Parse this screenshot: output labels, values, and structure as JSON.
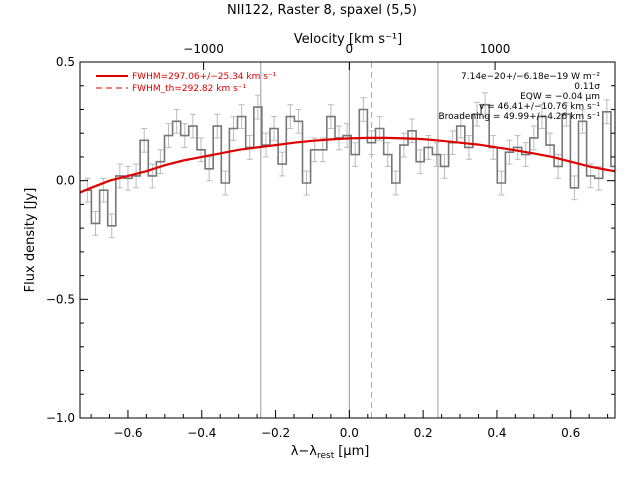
{
  "chart_data": {
    "type": "line",
    "title": "NII122, Raster 8, spaxel (5,5)",
    "xlabel_main": "λ−λ",
    "xlabel_sub": "rest",
    "xlabel_units": "[μm]",
    "ylabel": "Flux density [Jy]",
    "top_axis_label": "Velocity [km s⁻¹]",
    "xlim": [
      -0.73,
      0.72
    ],
    "ylim": [
      -1.0,
      0.5
    ],
    "x_ticks": [
      -0.6,
      -0.4,
      -0.2,
      0.0,
      0.2,
      0.4,
      0.6
    ],
    "x_tick_labels": [
      "−0.6",
      "−0.4",
      "−0.2",
      "0.0",
      "0.2",
      "0.4",
      "0.6"
    ],
    "y_ticks": [
      -1.0,
      -0.5,
      0.0,
      0.5
    ],
    "y_tick_labels": [
      "−1.0",
      "−0.5",
      "0.0",
      "0.5"
    ],
    "top_ticks_pos": [
      -0.395,
      0.0,
      0.395
    ],
    "top_tick_labels": [
      "−1000",
      "0",
      "1000"
    ],
    "vlines_solid": [
      -0.24,
      0.0,
      0.24
    ],
    "vline_dashed": 0.06,
    "legend": [
      {
        "label": "FWHM=297.06+/−25.34 km s⁻¹",
        "color": "#dd0000",
        "style": "solid"
      },
      {
        "label": "FWHM_th=292.82 km s⁻¹",
        "color": "#dd0000",
        "style": "dashed"
      }
    ],
    "annotations": [
      "7.14e−20+/−6.18e−19 W m⁻²",
      "0.11σ",
      "EQW = −0.04 μm",
      "v = 46.41+/−10.76 km s⁻¹",
      "Broadening = 49.99+/−4.26 km s⁻¹"
    ],
    "series": [
      {
        "name": "spectrum",
        "color": "#777777",
        "style": "step",
        "x": [
          -0.71,
          -0.688,
          -0.666,
          -0.644,
          -0.622,
          -0.6,
          -0.578,
          -0.556,
          -0.534,
          -0.512,
          -0.49,
          -0.468,
          -0.446,
          -0.424,
          -0.402,
          -0.38,
          -0.358,
          -0.336,
          -0.314,
          -0.292,
          -0.27,
          -0.248,
          -0.226,
          -0.204,
          -0.182,
          -0.16,
          -0.138,
          -0.116,
          -0.094,
          -0.072,
          -0.05,
          -0.028,
          -0.006,
          0.016,
          0.038,
          0.06,
          0.082,
          0.104,
          0.126,
          0.148,
          0.17,
          0.192,
          0.214,
          0.236,
          0.258,
          0.28,
          0.302,
          0.324,
          0.346,
          0.368,
          0.39,
          0.412,
          0.434,
          0.456,
          0.478,
          0.5,
          0.522,
          0.544,
          0.566,
          0.588,
          0.61,
          0.632,
          0.654,
          0.676,
          0.698,
          0.72
        ],
        "y": [
          -0.04,
          -0.18,
          -0.04,
          -0.19,
          0.02,
          0.01,
          0.02,
          0.17,
          0.02,
          0.08,
          0.19,
          0.25,
          0.19,
          0.23,
          0.13,
          0.05,
          0.23,
          -0.01,
          0.22,
          0.27,
          0.14,
          0.31,
          0.15,
          0.22,
          0.07,
          0.27,
          0.25,
          -0.01,
          0.13,
          0.13,
          0.27,
          0.18,
          0.19,
          0.11,
          0.3,
          0.16,
          0.22,
          0.11,
          -0.01,
          0.15,
          0.21,
          0.08,
          0.14,
          0.11,
          0.06,
          0.16,
          0.23,
          0.14,
          0.28,
          0.32,
          0.14,
          -0.01,
          0.12,
          0.14,
          0.11,
          0.18,
          0.27,
          0.15,
          0.06,
          0.28,
          -0.03,
          0.25,
          0.02,
          0.01,
          0.29,
          0.06
        ],
        "err": 0.05
      },
      {
        "name": "fit",
        "color": "#dd0000",
        "style": "smooth",
        "x": [
          -0.73,
          -0.7,
          -0.65,
          -0.6,
          -0.55,
          -0.5,
          -0.45,
          -0.4,
          -0.35,
          -0.3,
          -0.25,
          -0.2,
          -0.15,
          -0.1,
          -0.05,
          0.0,
          0.05,
          0.1,
          0.15,
          0.2,
          0.25,
          0.3,
          0.35,
          0.4,
          0.45,
          0.5,
          0.55,
          0.6,
          0.65,
          0.7,
          0.72
        ],
        "y": [
          -0.05,
          -0.03,
          0.0,
          0.02,
          0.04,
          0.065,
          0.085,
          0.1,
          0.115,
          0.13,
          0.14,
          0.15,
          0.16,
          0.168,
          0.174,
          0.178,
          0.18,
          0.18,
          0.178,
          0.175,
          0.168,
          0.16,
          0.152,
          0.14,
          0.128,
          0.115,
          0.1,
          0.08,
          0.06,
          0.045,
          0.04
        ]
      }
    ]
  }
}
